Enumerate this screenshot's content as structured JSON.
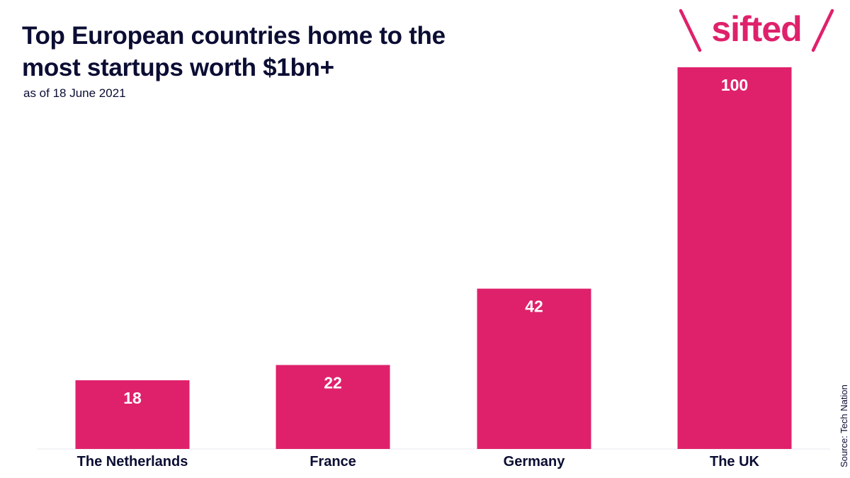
{
  "title": "Top European countries home to the most startups worth $1bn+",
  "subtitle": "as of 18 June 2021",
  "source": "Source: Tech Nation",
  "logo": {
    "text": "sifted"
  },
  "colors": {
    "bar": "#df216b",
    "text": "#0b0d33",
    "bar_label": "#ffffff",
    "baseline": "#e8e8ee"
  },
  "chart_data": {
    "type": "bar",
    "categories": [
      "The Netherlands",
      "France",
      "Germany",
      "The UK"
    ],
    "values": [
      18,
      22,
      42,
      100
    ],
    "ylim": [
      0,
      100
    ],
    "grid": false,
    "data_labels": true
  }
}
